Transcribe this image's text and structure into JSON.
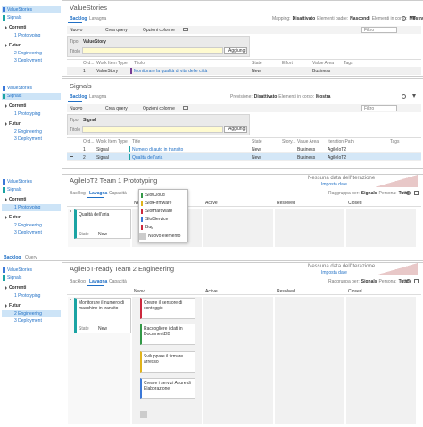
{
  "panels": [
    {
      "sidebar": {
        "items": [
          "ValueStories",
          "Signals"
        ],
        "current": "Correnti",
        "current_items": [
          "1 Prototyping"
        ],
        "future": "Futuri",
        "future_items": [
          "2 Engineering",
          "3 Deployment"
        ]
      },
      "title": "ValueStories",
      "tabs": [
        "Backlog",
        "Lavagna"
      ],
      "options": [
        "Mapping:",
        "Disattivato",
        "Elementi padre:",
        "Nascondi",
        "Elementi in corso:",
        "Mostra"
      ],
      "toolbar": [
        "Nuovo",
        "Crea query",
        "Opzioni colonne"
      ],
      "filter": "Filtro",
      "form": {
        "type_label": "Tipo",
        "type": "ValueStory",
        "title_label": "Titolo",
        "button": "Aggiungi"
      },
      "columns": [
        "Ord...",
        "Work Item Type",
        "Titolo",
        "State",
        "Effort",
        "Value Area",
        "Tags"
      ],
      "rows": [
        {
          "order": 1,
          "type": "ValueStory",
          "title": "Monitorare la qualità di vita delle città",
          "state": "New",
          "value_area": "Business"
        }
      ]
    },
    {
      "sidebar": {
        "items": [
          "ValueStories",
          "Signals"
        ],
        "current": "Correnti",
        "current_items": [
          "1 Prototyping"
        ],
        "future": "Futuri",
        "future_items": [
          "2 Engineering",
          "3 Deployment"
        ]
      },
      "title": "Signals",
      "tabs": [
        "Backlog",
        "Lavagna"
      ],
      "options": [
        "Previsione:",
        "Disattivato",
        "Elementi in corso:",
        "Mostra"
      ],
      "toolbar": [
        "Nuovo",
        "Crea query",
        "Opzioni colonne"
      ],
      "filter": "Filtro",
      "form": {
        "type_label": "Tipo",
        "type": "Signal",
        "title_label": "Titolo",
        "button": "Aggiungi"
      },
      "columns": [
        "Ord...",
        "Work Item Type",
        "Title",
        "State",
        "Story...",
        "Value Area",
        "Iteration Path",
        "Tags"
      ],
      "rows": [
        {
          "order": 1,
          "type": "Signal",
          "title": "Numero di auto in transito",
          "state": "New",
          "value_area": "Business",
          "iteration": "AgileIoT2"
        },
        {
          "order": 2,
          "type": "Signal",
          "title": "Qualità dell'aria",
          "state": "New",
          "value_area": "Business",
          "iteration": "AgileIoT2"
        }
      ]
    },
    {
      "sidebar": {
        "items": [
          "ValueStories",
          "Signals"
        ],
        "current": "Correnti",
        "current_items": [
          "1 Prototyping"
        ],
        "future": "Futuri",
        "future_items": [
          "2 Engineering",
          "3 Deployment"
        ]
      },
      "title": "AgileIoT2 Team  1 Prototyping",
      "tabs": [
        "Backlog",
        "Lavagna",
        "Capacità"
      ],
      "notice": "Nessuna data dell'iterazione",
      "notice_link": "Imposta date",
      "options": [
        "Raggruppa per:",
        "Signals",
        "Persona:",
        "Tutto"
      ],
      "columns": [
        "Ne",
        "Active",
        "Resolved",
        "Closed"
      ],
      "card": {
        "title": "Qualità dell'aria",
        "state_label": "State",
        "state": "New"
      },
      "menu": [
        "SlotCloud",
        "SlotFirmware",
        "SlotHardware",
        "SlotService",
        "Bug"
      ],
      "menu_new": "Nuovo elemento"
    },
    {
      "top_tabs": [
        "Backlog",
        "Query"
      ],
      "sidebar": {
        "items": [
          "ValueStories",
          "Signals"
        ],
        "current": "Correnti",
        "current_items": [
          "1 Prototyping"
        ],
        "future": "Futuri",
        "future_items": [
          "2 Engineering",
          "3 Deployment"
        ]
      },
      "title": "AgileIoT-ready Team  2 Engineering",
      "tabs": [
        "Backlog",
        "Lavagna",
        "Capacità"
      ],
      "notice": "Nessuna data dell'iterazione",
      "notice_link": "Imposta date",
      "options": [
        "Raggruppa per:",
        "Signals",
        "Persona:",
        "Tutto"
      ],
      "columns": [
        "Nuovi",
        "Active",
        "Resolved",
        "Closed"
      ],
      "card": {
        "title": "Monitorare il numero di macchine in transito",
        "state_label": "State",
        "state": "New"
      },
      "tasks": [
        "Creare il sensore di conteggio",
        "Raccogliere i dati in DocumentDB",
        "Sviluppare il firmare arresso",
        "Creare i servizi Azure di Elaborazione"
      ]
    }
  ]
}
